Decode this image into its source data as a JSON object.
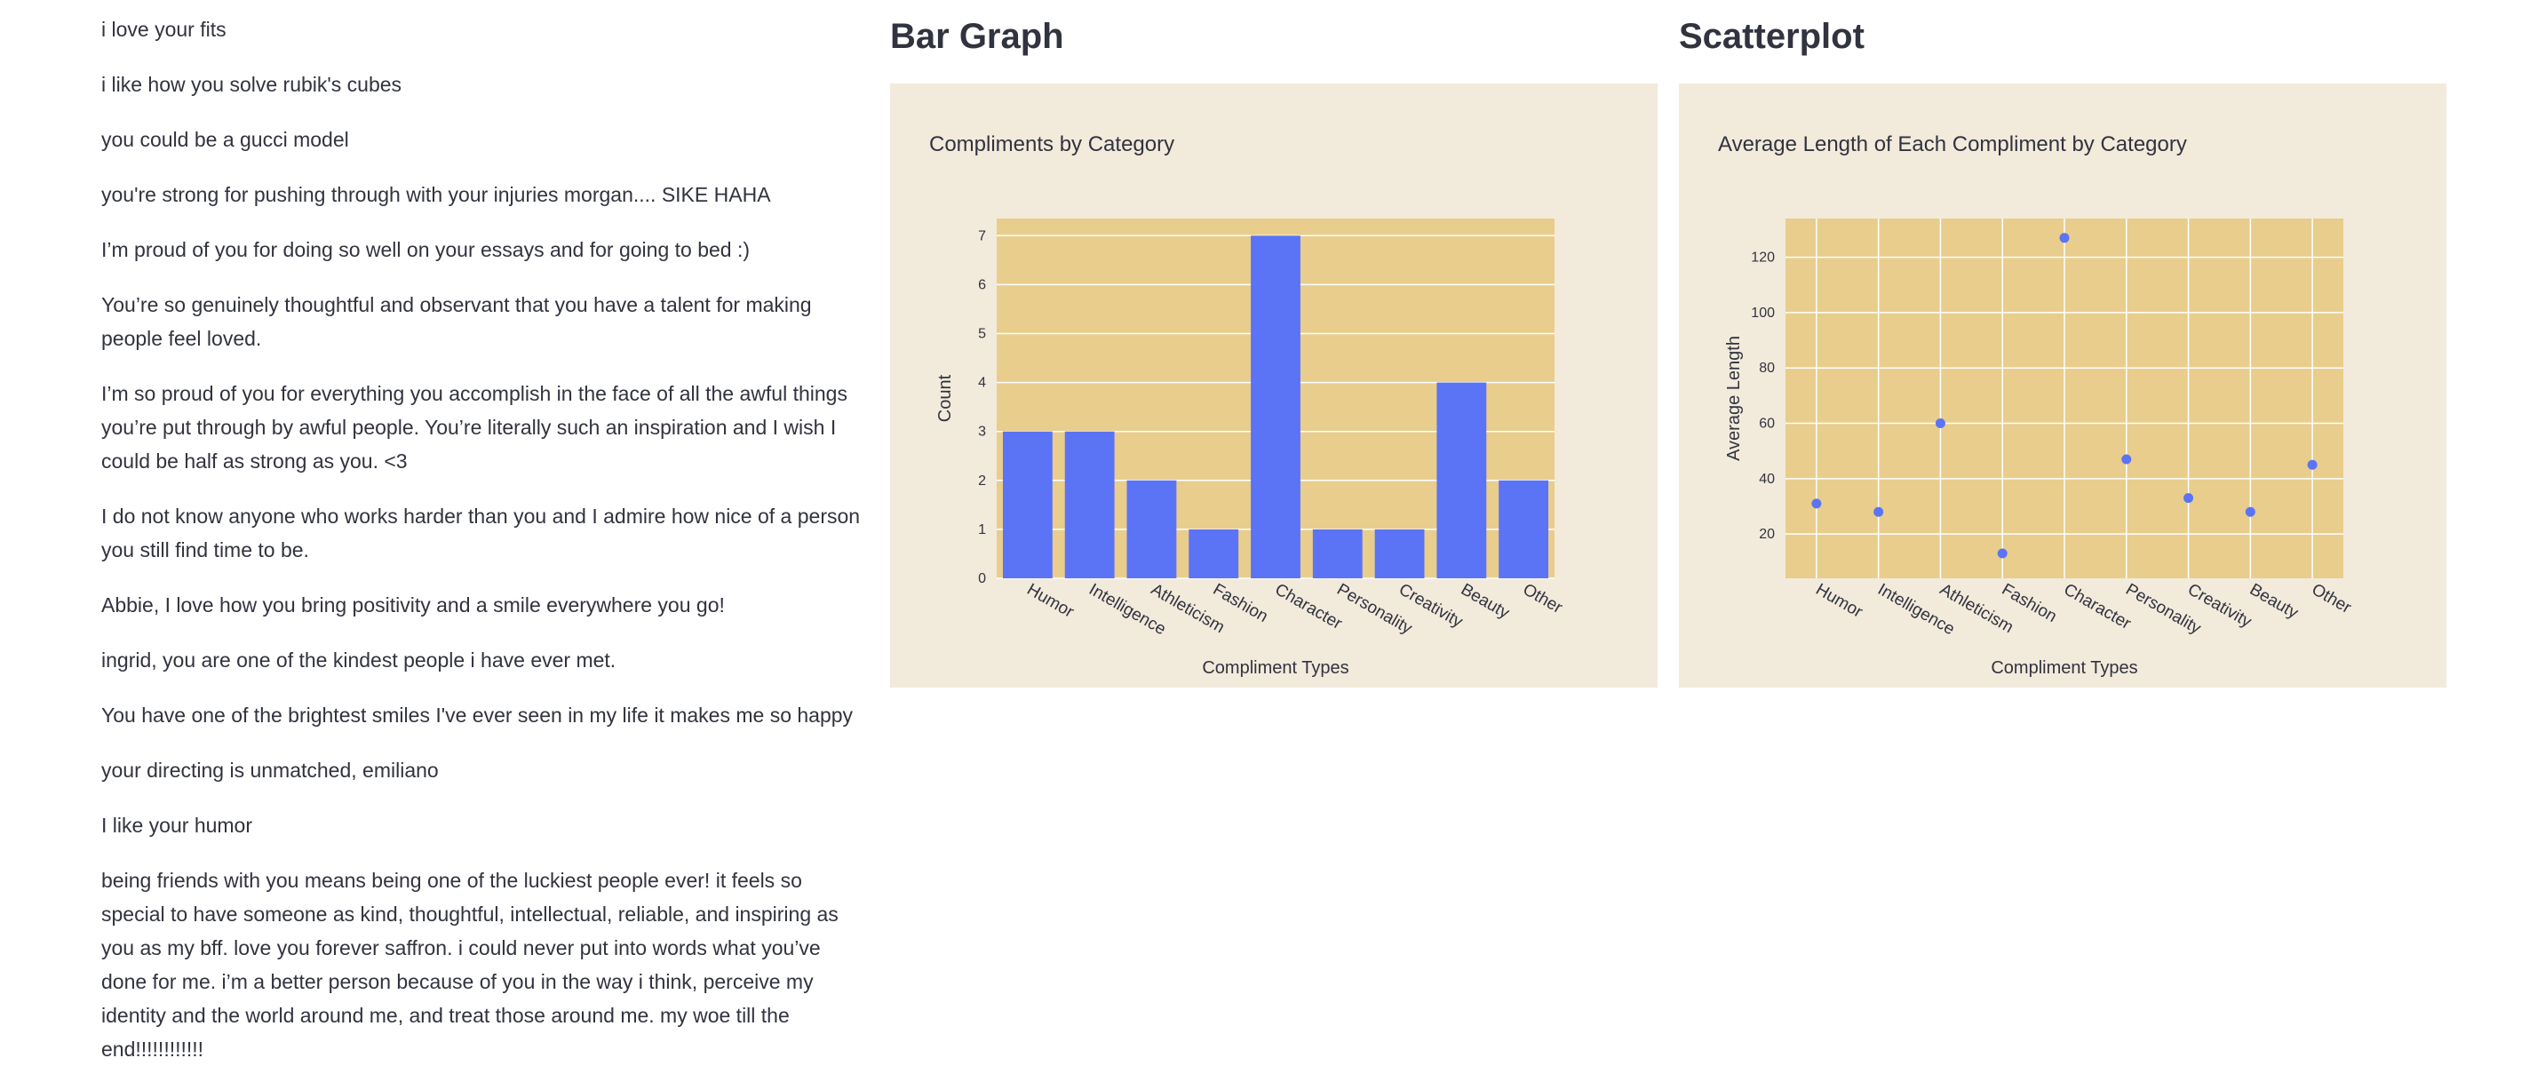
{
  "compliments": [
    "i love your fits",
    "i like how you solve rubik's cubes",
    "you could be a gucci model",
    "you're strong for pushing through with your injuries morgan.... SIKE HAHA",
    "I’m proud of you for doing so well on your essays and for going to bed :)",
    "You’re so genuinely thoughtful and observant that you have a talent for making people feel loved.",
    "I’m so proud of you for everything you accomplish in the face of all the awful things you’re put through by awful people. You’re literally such an inspiration and I wish I could be half as strong as you. <3",
    "I do not know anyone who works harder than you and I admire how nice of a person you still find time to be.",
    "Abbie, I love how you bring positivity and a smile everywhere you go!",
    "ingrid, you are one of the kindest people i have ever met.",
    "You have one of the brightest smiles I've ever seen in my life it makes me so happy",
    "your directing is unmatched, emiliano",
    "I like your humor",
    "being friends with you means being one of the luckiest people ever! it feels so special to have someone as kind, thoughtful, intellectual, reliable, and inspiring as you as my bff. love you forever saffron. i could never put into words what you’ve done for me. i’m a better person because of you in the way i think, perceive my identity and the world around me, and treat those around me. my woe till the end!!!!!!!!!!!!"
  ],
  "sections": {
    "bar_heading": "Bar Graph",
    "scatter_heading": "Scatterplot"
  },
  "colors": {
    "panel_bg": "#f2eadb",
    "plot_bg": "#e8cd8d",
    "grid": "#ffffff",
    "marker": "#5b73f5",
    "text": "#31333f"
  },
  "chart_data": [
    {
      "type": "bar",
      "title": "Compliments by Category",
      "xlabel": "Compliment Types",
      "ylabel": "Count",
      "categories": [
        "Humor",
        "Intelligence",
        "Athleticism",
        "Fashion",
        "Character",
        "Personality",
        "Creativity",
        "Beauty",
        "Other"
      ],
      "values": [
        3,
        3,
        2,
        1,
        7,
        1,
        1,
        4,
        2
      ],
      "ylim": [
        0,
        7.35
      ],
      "yticks": [
        0,
        1,
        2,
        3,
        4,
        5,
        6,
        7
      ],
      "grid": true,
      "legend": "none"
    },
    {
      "type": "scatter",
      "title": "Average Length of Each Compliment by Category",
      "xlabel": "Compliment Types",
      "ylabel": "Average Length",
      "categories": [
        "Humor",
        "Intelligence",
        "Athleticism",
        "Fashion",
        "Character",
        "Personality",
        "Creativity",
        "Beauty",
        "Other"
      ],
      "values": [
        31,
        28,
        60,
        13,
        127,
        47,
        33,
        28,
        45
      ],
      "ylim": [
        4,
        134
      ],
      "yticks": [
        20,
        40,
        60,
        80,
        100,
        120
      ],
      "grid": true,
      "legend": "none"
    }
  ]
}
